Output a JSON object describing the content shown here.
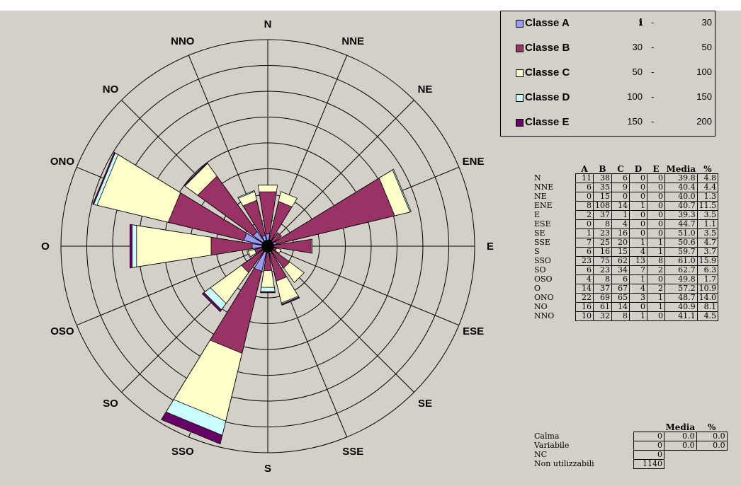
{
  "chart_data": {
    "type": "wind-rose",
    "directions": [
      "N",
      "NNE",
      "NE",
      "ENE",
      "E",
      "ESE",
      "SE",
      "SSE",
      "S",
      "SSO",
      "SO",
      "OSO",
      "O",
      "ONO",
      "NO",
      "NNO"
    ],
    "classes": [
      {
        "name": "Classe A",
        "min": "",
        "max": "30",
        "color": "#9999ff",
        "icon": "info-icon"
      },
      {
        "name": "Classe B",
        "min": "30",
        "max": "50",
        "color": "#993366"
      },
      {
        "name": "Classe C",
        "min": "50",
        "max": "100",
        "color": "#ffffcc"
      },
      {
        "name": "Classe D",
        "min": "100",
        "max": "150",
        "color": "#ccffff"
      },
      {
        "name": "Classe E",
        "min": "150",
        "max": "200",
        "color": "#660066"
      }
    ],
    "columns": [
      "A",
      "B",
      "C",
      "D",
      "E",
      "Media",
      "%"
    ],
    "rows": [
      {
        "dir": "N",
        "A": "11",
        "B": "38",
        "C": "6",
        "D": "0",
        "E": "0",
        "media": "39.8",
        "pct": "4.8"
      },
      {
        "dir": "NNE",
        "A": "6",
        "B": "35",
        "C": "9",
        "D": "0",
        "E": "0",
        "media": "40.4",
        "pct": "4.4"
      },
      {
        "dir": "NE",
        "A": "0",
        "B": "15",
        "C": "0",
        "D": "0",
        "E": "0",
        "media": "40.0",
        "pct": "1.3"
      },
      {
        "dir": "ENE",
        "A": "8",
        "B": "108",
        "C": "14",
        "D": "1",
        "E": "0",
        "media": "40.7",
        "pct": "11.5"
      },
      {
        "dir": "E",
        "A": "2",
        "B": "37",
        "C": "1",
        "D": "0",
        "E": "0",
        "media": "39.3",
        "pct": "3.5"
      },
      {
        "dir": "ESE",
        "A": "0",
        "B": "8",
        "C": "4",
        "D": "0",
        "E": "0",
        "media": "44.7",
        "pct": "1.1"
      },
      {
        "dir": "SE",
        "A": "1",
        "B": "23",
        "C": "16",
        "D": "0",
        "E": "0",
        "media": "51.0",
        "pct": "3.5"
      },
      {
        "dir": "SSE",
        "A": "7",
        "B": "25",
        "C": "20",
        "D": "1",
        "E": "1",
        "media": "50.6",
        "pct": "4.7"
      },
      {
        "dir": "S",
        "A": "6",
        "B": "16",
        "C": "15",
        "D": "4",
        "E": "1",
        "media": "59.7",
        "pct": "3.7"
      },
      {
        "dir": "SSO",
        "A": "23",
        "B": "75",
        "C": "62",
        "D": "13",
        "E": "8",
        "media": "61.0",
        "pct": "15.9"
      },
      {
        "dir": "SO",
        "A": "6",
        "B": "23",
        "C": "34",
        "D": "7",
        "E": "2",
        "media": "62.7",
        "pct": "6.3"
      },
      {
        "dir": "OSO",
        "A": "4",
        "B": "8",
        "C": "6",
        "D": "1",
        "E": "0",
        "media": "49.8",
        "pct": "1.7"
      },
      {
        "dir": "O",
        "A": "14",
        "B": "37",
        "C": "67",
        "D": "4",
        "E": "2",
        "media": "57.2",
        "pct": "10.9"
      },
      {
        "dir": "ONO",
        "A": "22",
        "B": "69",
        "C": "65",
        "D": "3",
        "E": "1",
        "media": "48.7",
        "pct": "14.0"
      },
      {
        "dir": "NO",
        "A": "16",
        "B": "61",
        "C": "14",
        "D": "0",
        "E": "1",
        "media": "40.9",
        "pct": "8.1"
      },
      {
        "dir": "NNO",
        "A": "10",
        "B": "32",
        "C": "8",
        "D": "1",
        "E": "0",
        "media": "41.1",
        "pct": "4.5"
      }
    ],
    "summary_columns": [
      "Media",
      "%"
    ],
    "summary": [
      {
        "label": "Calma",
        "value": "0",
        "media": "0.0",
        "pct": "0.0"
      },
      {
        "label": "Variabile",
        "value": "0",
        "media": "0.0",
        "pct": "0.0"
      },
      {
        "label": "NC",
        "value": "0",
        "media": "",
        "pct": ""
      },
      {
        "label": "Non utilizzabili",
        "value": "1140",
        "media": "",
        "pct": ""
      }
    ],
    "rings": 8,
    "grid": true
  }
}
